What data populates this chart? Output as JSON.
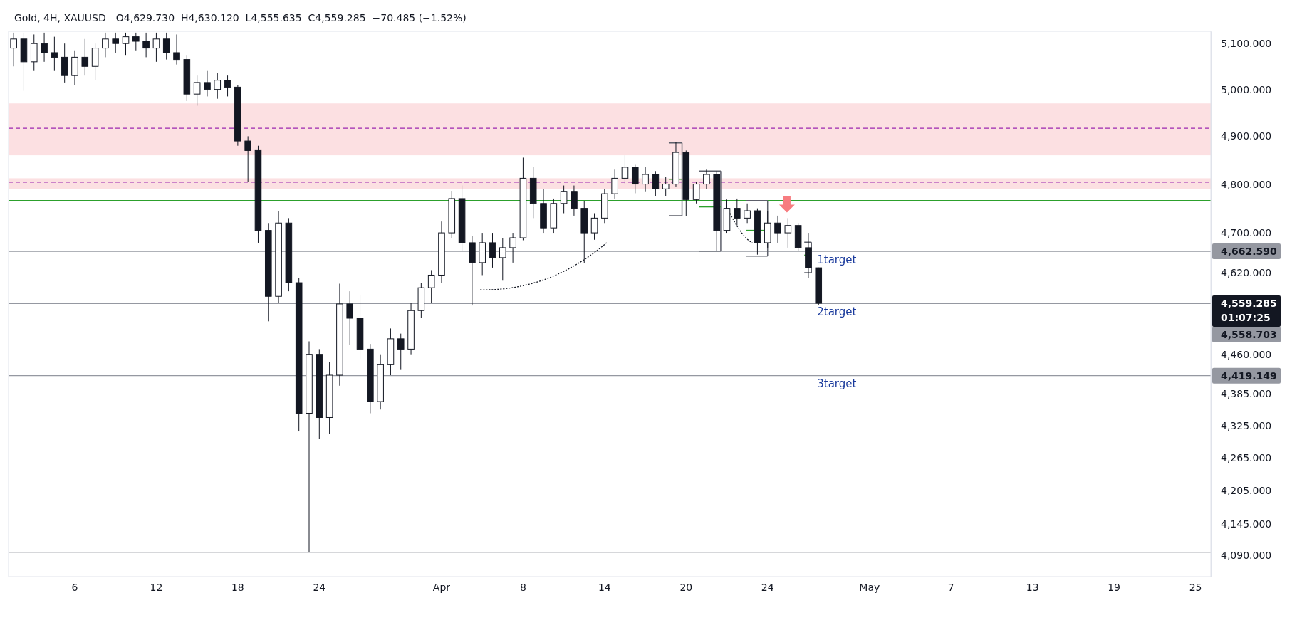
{
  "chart_data": {
    "type": "candlestick",
    "title": "Gold, 4H, XAUUSD",
    "subtitle": "O4,629.730  H4,630.120  L4,555.635  C4,559.285  −70.485 (−1.52%)",
    "color": "#131722",
    "categories": [
      null,
      null,
      null,
      null,
      null,
      null,
      "6",
      null,
      null,
      null,
      null,
      null,
      null,
      null,
      "12",
      null,
      null,
      null,
      null,
      null,
      null,
      null,
      "18",
      null,
      null,
      null,
      null,
      null,
      null,
      null,
      "24",
      null,
      null,
      null,
      null,
      null,
      null,
      null,
      null,
      null,
      null,
      null,
      "Apr",
      null,
      null,
      null,
      null,
      null,
      null,
      null,
      "8",
      null,
      null,
      null,
      null,
      null,
      null,
      null,
      "14",
      null,
      null,
      null,
      null,
      null,
      null,
      null,
      "20",
      null,
      null,
      null,
      null,
      null,
      null,
      null,
      "24",
      null,
      null,
      null,
      null,
      null,
      null,
      null,
      null,
      null,
      "May",
      null,
      null,
      null,
      null,
      null,
      null,
      null,
      "7",
      null,
      null,
      null,
      null,
      null,
      null,
      null,
      "13",
      null,
      null,
      null,
      null,
      null,
      null,
      null,
      "19",
      null,
      null,
      null,
      null,
      null,
      null,
      null,
      "25",
      null
    ],
    "ohlc": [
      [
        5090,
        5124,
        5050,
        5110
      ],
      [
        5110,
        5124,
        4997,
        5060
      ],
      [
        5060,
        5120,
        5040,
        5100
      ],
      [
        5100,
        5124,
        5060,
        5080
      ],
      [
        5080,
        5115,
        5040,
        5070
      ],
      [
        5070,
        5100,
        5015,
        5030
      ],
      [
        5030,
        5085,
        5010,
        5070
      ],
      [
        5070,
        5110,
        5030,
        5050
      ],
      [
        5050,
        5100,
        5020,
        5090
      ],
      [
        5090,
        5124,
        5070,
        5110
      ],
      [
        5110,
        5124,
        5080,
        5100
      ],
      [
        5100,
        5124,
        5075,
        5115
      ],
      [
        5115,
        5124,
        5085,
        5105
      ],
      [
        5105,
        5124,
        5070,
        5090
      ],
      [
        5090,
        5124,
        5060,
        5110
      ],
      [
        5110,
        5124,
        5065,
        5080
      ],
      [
        5080,
        5120,
        5054,
        5065
      ],
      [
        5065,
        5075,
        4975,
        4990
      ],
      [
        4990,
        5030,
        4965,
        5015
      ],
      [
        5015,
        5040,
        4985,
        5000
      ],
      [
        5000,
        5035,
        4980,
        5020
      ],
      [
        5020,
        5030,
        4985,
        5005
      ],
      [
        5005,
        5010,
        4880,
        4890
      ],
      [
        4890,
        4900,
        4805,
        4870
      ],
      [
        4870,
        4880,
        4680,
        4705
      ],
      [
        4705,
        4720,
        4524,
        4573
      ],
      [
        4573,
        4745,
        4560,
        4720
      ],
      [
        4720,
        4730,
        4583,
        4600
      ],
      [
        4600,
        4610,
        4314,
        4348
      ],
      [
        4348,
        4485,
        4095,
        4460
      ],
      [
        4460,
        4470,
        4300,
        4340
      ],
      [
        4340,
        4445,
        4310,
        4420
      ],
      [
        4420,
        4598,
        4400,
        4558
      ],
      [
        4558,
        4583,
        4478,
        4530
      ],
      [
        4530,
        4575,
        4451,
        4470
      ],
      [
        4470,
        4480,
        4348,
        4370
      ],
      [
        4370,
        4460,
        4355,
        4440
      ],
      [
        4440,
        4510,
        4420,
        4490
      ],
      [
        4490,
        4500,
        4430,
        4470
      ],
      [
        4470,
        4560,
        4460,
        4545
      ],
      [
        4545,
        4600,
        4530,
        4590
      ],
      [
        4590,
        4625,
        4560,
        4615
      ],
      [
        4615,
        4723,
        4600,
        4700
      ],
      [
        4700,
        4786,
        4690,
        4770
      ],
      [
        4770,
        4797,
        4663,
        4680
      ],
      [
        4680,
        4693,
        4555,
        4640
      ],
      [
        4640,
        4700,
        4615,
        4680
      ],
      [
        4680,
        4700,
        4630,
        4650
      ],
      [
        4650,
        4690,
        4604,
        4670
      ],
      [
        4670,
        4700,
        4640,
        4690
      ],
      [
        4690,
        4855,
        4685,
        4812
      ],
      [
        4812,
        4835,
        4730,
        4760
      ],
      [
        4760,
        4790,
        4700,
        4710
      ],
      [
        4710,
        4770,
        4700,
        4760
      ],
      [
        4760,
        4797,
        4740,
        4785
      ],
      [
        4785,
        4797,
        4735,
        4750
      ],
      [
        4750,
        4765,
        4639,
        4700
      ],
      [
        4700,
        4740,
        4686,
        4730
      ],
      [
        4730,
        4790,
        4720,
        4780
      ],
      [
        4780,
        4830,
        4770,
        4812
      ],
      [
        4812,
        4860,
        4800,
        4835
      ],
      [
        4835,
        4840,
        4781,
        4800
      ],
      [
        4800,
        4835,
        4785,
        4820
      ],
      [
        4820,
        4827,
        4775,
        4790
      ],
      [
        4790,
        4815,
        4775,
        4800
      ],
      [
        4800,
        4888,
        4795,
        4866
      ],
      [
        4866,
        4870,
        4734,
        4768
      ],
      [
        4768,
        4805,
        4760,
        4800
      ],
      [
        4800,
        4830,
        4790,
        4820
      ],
      [
        4820,
        4827,
        4663,
        4705
      ],
      [
        4705,
        4768,
        4700,
        4750
      ],
      [
        4750,
        4770,
        4715,
        4730
      ],
      [
        4730,
        4760,
        4720,
        4745
      ],
      [
        4745,
        4750,
        4656,
        4680
      ],
      [
        4680,
        4745,
        4670,
        4720
      ],
      [
        4720,
        4735,
        4680,
        4700
      ],
      [
        4700,
        4730,
        4670,
        4715
      ],
      [
        4715,
        4720,
        4663,
        4670
      ],
      [
        4670,
        4700,
        4610,
        4629.73
      ],
      [
        4629.73,
        4630.12,
        4555.635,
        4559.285
      ],
      null,
      null,
      null,
      null,
      null,
      null,
      null,
      null,
      null,
      null,
      null,
      null,
      null,
      null,
      null,
      null,
      null,
      null,
      null,
      null,
      null,
      null,
      null,
      null,
      null,
      null,
      null,
      null,
      null,
      null,
      null,
      null,
      null,
      null,
      null,
      null,
      null,
      null
    ],
    "log": true,
    "ylim": [
      4052,
      5127
    ],
    "yticks": [
      {
        "value": 5100,
        "label": "5,100.000"
      },
      {
        "value": 5000,
        "label": "5,000.000"
      },
      {
        "value": 4900,
        "label": "4,900.000"
      },
      {
        "value": 4800,
        "label": "4,800.000"
      },
      {
        "value": 4700,
        "label": "4,700.000"
      },
      {
        "value": 4620,
        "label": "4,620.000"
      },
      {
        "value": 4460,
        "label": "4,460.000"
      },
      {
        "value": 4385,
        "label": "4,385.000"
      },
      {
        "value": 4325,
        "label": "4,325.000"
      },
      {
        "value": 4265,
        "label": "4,265.000"
      },
      {
        "value": 4205,
        "label": "4,205.000"
      },
      {
        "value": 4145,
        "label": "4,145.000"
      },
      {
        "value": 4090,
        "label": "4,090.000"
      }
    ],
    "bands": [
      {
        "axis": "y",
        "from": 4860,
        "to": 4970,
        "color": "#fbdadd"
      },
      {
        "axis": "y",
        "from": 4790,
        "to": 4812,
        "color": "#fbdadd"
      }
    ],
    "ref_lines": [
      {
        "axis": "y",
        "value": 4917,
        "color": "#9c27b0",
        "line_style": "dashed"
      },
      {
        "axis": "y",
        "value": 4804,
        "color": "#9c27b0",
        "line_style": "dashed"
      },
      {
        "axis": "y",
        "value": 4766,
        "color": "#2ca02c"
      },
      {
        "axis": "y",
        "value": 4095,
        "color": "#5d606b"
      },
      {
        "axis": "y",
        "value": 4662.59,
        "label": "4,662.590",
        "color": "#9598a1"
      },
      {
        "axis": "y",
        "value": 4559.285,
        "label": "4,559.285\n01:07:25",
        "color": "#131722",
        "line_style": "dotted"
      },
      {
        "axis": "y",
        "value": 4558.703,
        "label": "4,558.703",
        "color": "#9598a1"
      },
      {
        "axis": "y",
        "value": 4419.149,
        "label": "4,419.149",
        "color": "#9598a1"
      }
    ],
    "annotations": [
      {
        "text": "1target",
        "y": 4662.59
      },
      {
        "text": "2target",
        "y": 4559.285
      },
      {
        "text": "3target",
        "y": 4419.149
      }
    ]
  }
}
